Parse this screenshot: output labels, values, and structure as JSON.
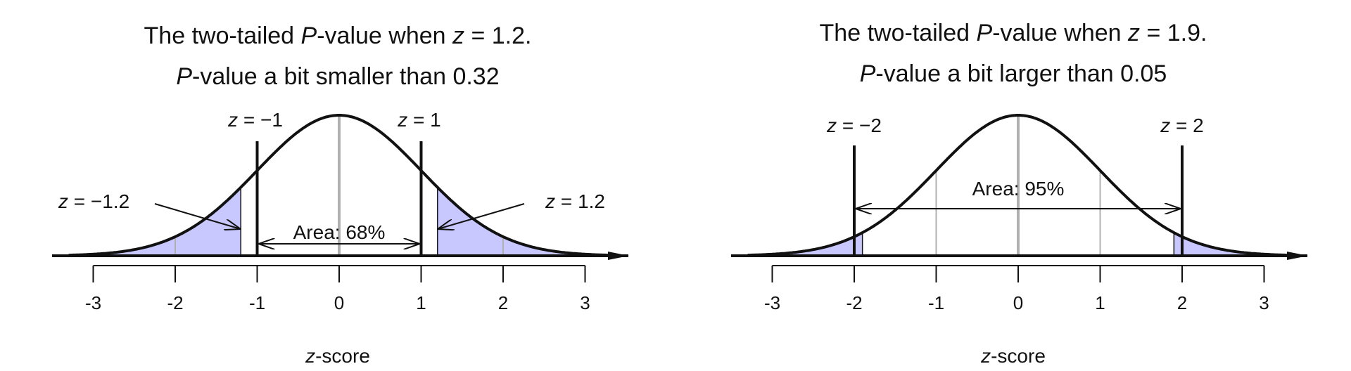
{
  "chart_data": [
    {
      "type": "area",
      "title_line1": {
        "pre": "The two-tailed ",
        "it1": "P",
        "mid": "-value when ",
        "it2": "z",
        "post": " = 1.2."
      },
      "title_line2": {
        "it": "P",
        "post": "-value a bit smaller than 0.32"
      },
      "xlabel": {
        "it": "z",
        "post": "-score"
      },
      "xlim": [
        -3.5,
        3.5
      ],
      "ticks": [
        -3,
        -2,
        -1,
        0,
        1,
        2,
        3
      ],
      "tick_labels": [
        "-3",
        "-2",
        "-1",
        "0",
        "1",
        "2",
        "3"
      ],
      "z_observed": 1.2,
      "tail_shading": {
        "left_upper": -1.2,
        "right_lower": 1.2,
        "color": "#c8c8ff"
      },
      "thick_lines": [
        -1,
        1
      ],
      "area_label": "Area: 68%",
      "area_range": [
        -1,
        1
      ],
      "annotations": [
        {
          "text_it": "z",
          "text": " = −1",
          "x": -1
        },
        {
          "text_it": "z",
          "text": " = 1",
          "x": 1
        },
        {
          "text_it": "z",
          "text": " = −1.2",
          "x": -1.2
        },
        {
          "text_it": "z",
          "text": " = 1.2",
          "x": 1.2
        }
      ]
    },
    {
      "type": "area",
      "title_line1": {
        "pre": "The two-tailed ",
        "it1": "P",
        "mid": "-value when ",
        "it2": "z",
        "post": " = 1.9."
      },
      "title_line2": {
        "it": "P",
        "post": "-value a bit larger than 0.05"
      },
      "xlabel": {
        "it": "z",
        "post": "-score"
      },
      "xlim": [
        -3.5,
        3.5
      ],
      "ticks": [
        -3,
        -2,
        -1,
        0,
        1,
        2,
        3
      ],
      "tick_labels": [
        "-3",
        "-2",
        "-1",
        "0",
        "1",
        "2",
        "3"
      ],
      "z_observed": 1.9,
      "tail_shading": {
        "left_upper": -1.9,
        "right_lower": 1.9,
        "color": "#c8c8ff"
      },
      "thick_lines": [
        -2,
        2
      ],
      "area_label": "Area: 95%",
      "area_range": [
        -2,
        2
      ],
      "annotations": [
        {
          "text_it": "z",
          "text": " = −2",
          "x": -2
        },
        {
          "text_it": "z",
          "text": " = 2",
          "x": 2
        }
      ]
    }
  ]
}
